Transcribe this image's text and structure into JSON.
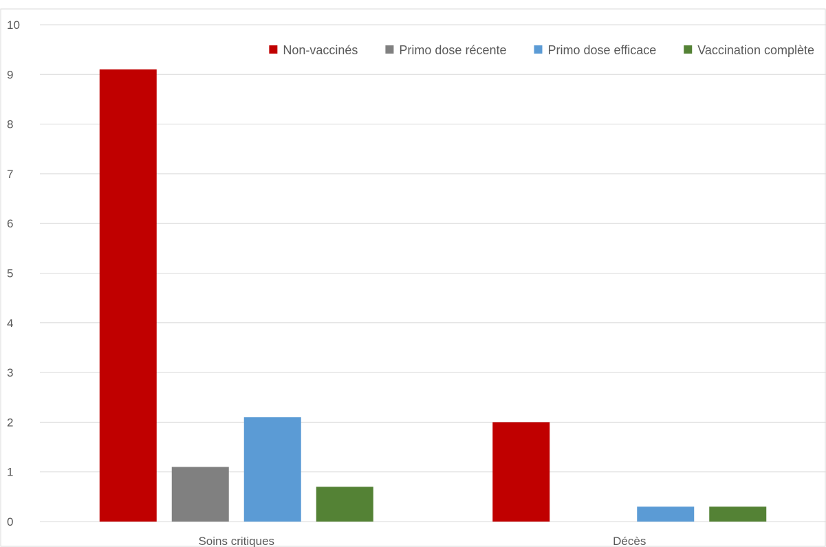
{
  "chart_data": {
    "type": "bar",
    "categories": [
      "Soins critiques",
      "Décès"
    ],
    "series": [
      {
        "name": "Non-vaccinés",
        "color": "#c00000",
        "values": [
          9.1,
          2.0
        ]
      },
      {
        "name": "Primo dose récente",
        "color": "#808080",
        "values": [
          1.1,
          0
        ]
      },
      {
        "name": "Primo dose efficace",
        "color": "#5b9bd5",
        "values": [
          2.1,
          0.3
        ]
      },
      {
        "name": "Vaccination complète",
        "color": "#548235",
        "values": [
          0.7,
          0.3
        ]
      }
    ],
    "ylim": [
      0,
      10
    ],
    "yticks": [
      0,
      1,
      2,
      3,
      4,
      5,
      6,
      7,
      8,
      9,
      10
    ],
    "grid": true,
    "legend_position": "top-right",
    "title": "",
    "xlabel": "",
    "ylabel": ""
  }
}
